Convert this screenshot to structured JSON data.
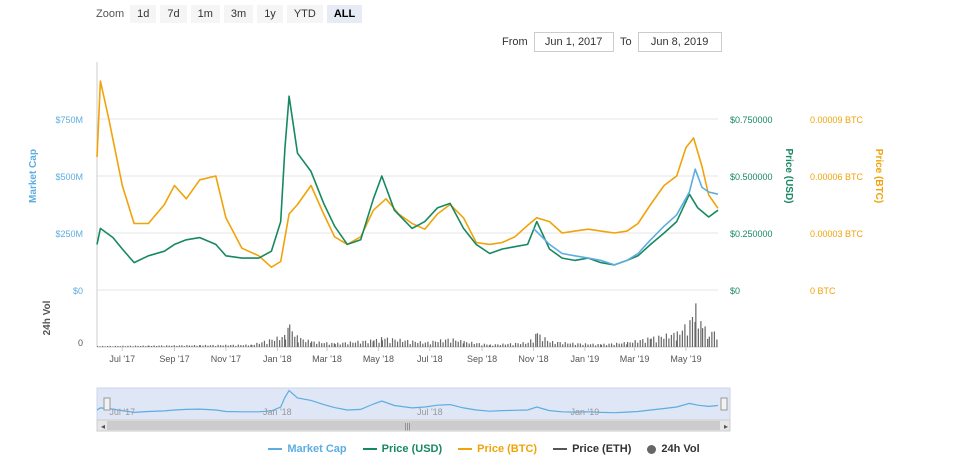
{
  "zoom": {
    "label": "Zoom",
    "buttons": [
      "1d",
      "7d",
      "1m",
      "3m",
      "1y",
      "YTD",
      "ALL"
    ],
    "active": "ALL"
  },
  "range": {
    "from_label": "From",
    "from_value": "Jun 1, 2017",
    "to_label": "To",
    "to_value": "Jun 8, 2019"
  },
  "colors": {
    "market_cap": "#5dade2",
    "price_usd": "#17895f",
    "price_btc": "#f0a30a",
    "price_eth": "#555555",
    "volume": "#666666"
  },
  "legend": [
    {
      "name": "Market Cap",
      "color": "#5dade2",
      "shape": "line"
    },
    {
      "name": "Price (USD)",
      "color": "#17895f",
      "shape": "line"
    },
    {
      "name": "Price (BTC)",
      "color": "#f0a30a",
      "shape": "line"
    },
    {
      "name": "Price (ETH)",
      "color": "#555555",
      "shape": "line"
    },
    {
      "name": "24h Vol",
      "color": "#666666",
      "shape": "dot"
    }
  ],
  "axes": {
    "market_cap_title": "Market Cap",
    "price_usd_title": "Price (USD)",
    "price_btc_title": "Price (BTC)",
    "volume_title": "24h Vol",
    "market_cap_ticks": [
      "$0",
      "$250M",
      "$500M",
      "$750M"
    ],
    "price_usd_ticks": [
      "$0",
      "$0.250000",
      "$0.500000",
      "$0.750000"
    ],
    "price_btc_ticks": [
      "0 BTC",
      "0.00003 BTC",
      "0.00006 BTC",
      "0.00009 BTC"
    ],
    "volume_ticks": [
      "0"
    ],
    "x_ticks": [
      "Jul '17",
      "Sep '17",
      "Nov '17",
      "Jan '18",
      "Mar '18",
      "May '18",
      "Jul '18",
      "Sep '18",
      "Nov '18",
      "Jan '19",
      "Mar '19",
      "May '19"
    ],
    "navigator_ticks": [
      "Jul '17",
      "Jan '18",
      "Jul '18",
      "Jan '19"
    ]
  },
  "chart_data": {
    "type": "line",
    "x_start": "2017-06-01",
    "x_end": "2019-06-08",
    "x_ticks_dates": [
      "2017-07-01",
      "2017-09-01",
      "2017-11-01",
      "2018-01-01",
      "2018-03-01",
      "2018-05-01",
      "2018-07-01",
      "2018-09-01",
      "2018-11-01",
      "2019-01-01",
      "2019-03-01",
      "2019-05-01"
    ],
    "ylim_market_cap": [
      0,
      1000000000
    ],
    "ylim_price_usd": [
      0,
      1.0
    ],
    "ylim_price_btc": [
      0,
      0.00012
    ],
    "grid": true,
    "series": [
      {
        "name": "Price (BTC)",
        "axis": "btc",
        "points": [
          [
            "2017-06-01",
            7e-05
          ],
          [
            "2017-06-05",
            0.00011
          ],
          [
            "2017-06-15",
            9e-05
          ],
          [
            "2017-07-01",
            5.5e-05
          ],
          [
            "2017-07-15",
            3.5e-05
          ],
          [
            "2017-08-01",
            3.5e-05
          ],
          [
            "2017-08-20",
            4.5e-05
          ],
          [
            "2017-09-01",
            5.5e-05
          ],
          [
            "2017-09-15",
            4.8e-05
          ],
          [
            "2017-10-01",
            5.8e-05
          ],
          [
            "2017-10-20",
            6e-05
          ],
          [
            "2017-11-01",
            3.8e-05
          ],
          [
            "2017-11-20",
            2.2e-05
          ],
          [
            "2017-12-10",
            1.8e-05
          ],
          [
            "2017-12-25",
            1.2e-05
          ],
          [
            "2018-01-05",
            1.5e-05
          ],
          [
            "2018-01-15",
            4e-05
          ],
          [
            "2018-01-25",
            4.5e-05
          ],
          [
            "2018-02-10",
            5.5e-05
          ],
          [
            "2018-02-25",
            4e-05
          ],
          [
            "2018-03-10",
            2.8e-05
          ],
          [
            "2018-03-25",
            2.4e-05
          ],
          [
            "2018-04-10",
            2.8e-05
          ],
          [
            "2018-04-25",
            4.2e-05
          ],
          [
            "2018-05-10",
            4.8e-05
          ],
          [
            "2018-05-25",
            4e-05
          ],
          [
            "2018-06-10",
            3.5e-05
          ],
          [
            "2018-06-25",
            3.2e-05
          ],
          [
            "2018-07-10",
            4e-05
          ],
          [
            "2018-07-25",
            4.5e-05
          ],
          [
            "2018-08-10",
            3.8e-05
          ],
          [
            "2018-08-25",
            2.5e-05
          ],
          [
            "2018-09-10",
            2.4e-05
          ],
          [
            "2018-09-25",
            2.5e-05
          ],
          [
            "2018-10-10",
            2.8e-05
          ],
          [
            "2018-10-25",
            3.4e-05
          ],
          [
            "2018-11-05",
            3.8e-05
          ],
          [
            "2018-11-20",
            3.6e-05
          ],
          [
            "2018-12-05",
            3e-05
          ],
          [
            "2018-12-20",
            3.1e-05
          ],
          [
            "2019-01-05",
            3.2e-05
          ],
          [
            "2019-01-20",
            3.1e-05
          ],
          [
            "2019-02-05",
            3e-05
          ],
          [
            "2019-02-20",
            3.1e-05
          ],
          [
            "2019-03-05",
            3.5e-05
          ],
          [
            "2019-03-20",
            4.5e-05
          ],
          [
            "2019-04-05",
            5.5e-05
          ],
          [
            "2019-04-20",
            6e-05
          ],
          [
            "2019-05-01",
            7.5e-05
          ],
          [
            "2019-05-10",
            8e-05
          ],
          [
            "2019-05-20",
            6.5e-05
          ],
          [
            "2019-05-28",
            5e-05
          ],
          [
            "2019-06-08",
            4.3e-05
          ]
        ]
      },
      {
        "name": "Price (USD)",
        "axis": "usd",
        "points": [
          [
            "2017-06-01",
            0.2
          ],
          [
            "2017-06-05",
            0.27
          ],
          [
            "2017-06-20",
            0.23
          ],
          [
            "2017-07-01",
            0.18
          ],
          [
            "2017-07-15",
            0.12
          ],
          [
            "2017-08-01",
            0.15
          ],
          [
            "2017-08-20",
            0.17
          ],
          [
            "2017-09-01",
            0.2
          ],
          [
            "2017-09-15",
            0.22
          ],
          [
            "2017-10-01",
            0.23
          ],
          [
            "2017-10-20",
            0.2
          ],
          [
            "2017-11-01",
            0.15
          ],
          [
            "2017-11-20",
            0.14
          ],
          [
            "2017-12-10",
            0.14
          ],
          [
            "2017-12-25",
            0.17
          ],
          [
            "2018-01-05",
            0.3
          ],
          [
            "2018-01-10",
            0.62
          ],
          [
            "2018-01-15",
            0.85
          ],
          [
            "2018-01-25",
            0.6
          ],
          [
            "2018-02-10",
            0.52
          ],
          [
            "2018-02-25",
            0.38
          ],
          [
            "2018-03-10",
            0.28
          ],
          [
            "2018-03-25",
            0.2
          ],
          [
            "2018-04-10",
            0.22
          ],
          [
            "2018-04-25",
            0.4
          ],
          [
            "2018-05-05",
            0.5
          ],
          [
            "2018-05-20",
            0.35
          ],
          [
            "2018-06-10",
            0.27
          ],
          [
            "2018-06-25",
            0.3
          ],
          [
            "2018-07-10",
            0.36
          ],
          [
            "2018-07-25",
            0.38
          ],
          [
            "2018-08-10",
            0.27
          ],
          [
            "2018-08-25",
            0.2
          ],
          [
            "2018-09-10",
            0.16
          ],
          [
            "2018-09-25",
            0.18
          ],
          [
            "2018-10-10",
            0.19
          ],
          [
            "2018-10-25",
            0.2
          ],
          [
            "2018-11-05",
            0.3
          ],
          [
            "2018-11-20",
            0.18
          ],
          [
            "2018-12-05",
            0.14
          ],
          [
            "2018-12-20",
            0.13
          ],
          [
            "2019-01-05",
            0.14
          ],
          [
            "2019-01-20",
            0.12
          ],
          [
            "2019-02-05",
            0.11
          ],
          [
            "2019-02-20",
            0.13
          ],
          [
            "2019-03-05",
            0.15
          ],
          [
            "2019-03-20",
            0.2
          ],
          [
            "2019-04-05",
            0.25
          ],
          [
            "2019-04-20",
            0.3
          ],
          [
            "2019-05-05",
            0.42
          ],
          [
            "2019-05-15",
            0.36
          ],
          [
            "2019-05-28",
            0.32
          ],
          [
            "2019-06-08",
            0.35
          ]
        ]
      },
      {
        "name": "Market Cap",
        "axis": "mcap",
        "points": [
          [
            "2018-11-01",
            270000000
          ],
          [
            "2018-11-20",
            200000000
          ],
          [
            "2018-12-05",
            160000000
          ],
          [
            "2018-12-20",
            150000000
          ],
          [
            "2019-01-05",
            140000000
          ],
          [
            "2019-01-20",
            130000000
          ],
          [
            "2019-02-05",
            110000000
          ],
          [
            "2019-02-20",
            130000000
          ],
          [
            "2019-03-05",
            160000000
          ],
          [
            "2019-03-20",
            220000000
          ],
          [
            "2019-04-05",
            280000000
          ],
          [
            "2019-04-20",
            330000000
          ],
          [
            "2019-05-05",
            430000000
          ],
          [
            "2019-05-12",
            530000000
          ],
          [
            "2019-05-20",
            450000000
          ],
          [
            "2019-05-28",
            430000000
          ],
          [
            "2019-06-08",
            420000000
          ]
        ]
      }
    ],
    "volume": {
      "name": "24h Vol",
      "points": [
        [
          "2017-06-01",
          0.02
        ],
        [
          "2017-08-01",
          0.03
        ],
        [
          "2017-10-01",
          0.04
        ],
        [
          "2017-12-01",
          0.05
        ],
        [
          "2018-01-10",
          0.25
        ],
        [
          "2018-01-15",
          0.45
        ],
        [
          "2018-01-25",
          0.2
        ],
        [
          "2018-02-10",
          0.12
        ],
        [
          "2018-03-10",
          0.08
        ],
        [
          "2018-04-25",
          0.15
        ],
        [
          "2018-05-05",
          0.2
        ],
        [
          "2018-06-25",
          0.1
        ],
        [
          "2018-07-25",
          0.18
        ],
        [
          "2018-08-10",
          0.12
        ],
        [
          "2018-09-10",
          0.05
        ],
        [
          "2018-10-25",
          0.1
        ],
        [
          "2018-11-05",
          0.3
        ],
        [
          "2018-11-20",
          0.12
        ],
        [
          "2018-12-20",
          0.08
        ],
        [
          "2019-01-20",
          0.06
        ],
        [
          "2019-02-20",
          0.1
        ],
        [
          "2019-03-20",
          0.2
        ],
        [
          "2019-04-20",
          0.3
        ],
        [
          "2019-05-05",
          0.55
        ],
        [
          "2019-05-12",
          0.85
        ],
        [
          "2019-05-20",
          0.45
        ],
        [
          "2019-05-28",
          0.35
        ],
        [
          "2019-06-08",
          0.3
        ]
      ]
    }
  }
}
